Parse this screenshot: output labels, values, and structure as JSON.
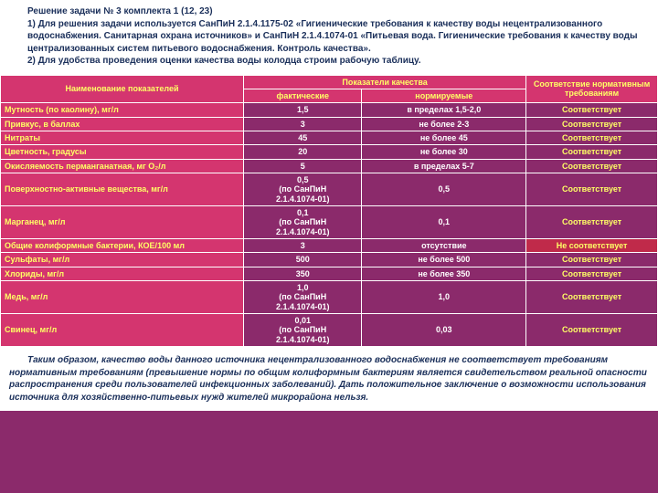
{
  "header": {
    "title": "Решение задачи № 3 комплекта 1 (12, 23)",
    "p1_prefix": "1) ",
    "p1": "Для решения задачи используется СанПиН 2.1.4.1175-02 «Гигиенические требования к качеству воды нецентрализованного водоснабжения. Санитарная охрана источников» и СанПиН 2.1.4.1074-01 «Питьевая вода. Гигиенические требования к качеству воды централизованных систем питьевого водоснабжения. Контроль качества».",
    "p2_prefix": "2) ",
    "p2": "Для удобства проведения оценки качества воды колодца строим рабочую таблицу."
  },
  "table": {
    "col_name": "Наименование показателей",
    "col_quality": "Показатели качества",
    "col_actual": "фактические",
    "col_norm": "нормируемые",
    "col_compliance": "Соответствие нормативным требованиям",
    "rows": [
      {
        "name": "Мутность (по каолину), мг/л",
        "actual": "1,5",
        "norm": "в пределах 1,5-2,0",
        "comp": "Соответствует",
        "ok": true
      },
      {
        "name": "Привкус, в баллах",
        "actual": "3",
        "norm": "не более 2-3",
        "comp": "Соответствует",
        "ok": true
      },
      {
        "name": "Нитраты",
        "actual": "45",
        "norm": "не более 45",
        "comp": "Соответствует",
        "ok": true
      },
      {
        "name": "Цветность, градусы",
        "actual": "20",
        "norm": "не более 30",
        "comp": "Соответствует",
        "ok": true
      },
      {
        "name": "Окисляемость перманганатная, мг О₂/л",
        "actual": "5",
        "norm": "в пределах 5-7",
        "comp": "Соответствует",
        "ok": true
      },
      {
        "name": "Поверхностно-активные вещества, мг/л",
        "actual": "0,5\n(по СанПиН\n2.1.4.1074-01)",
        "norm": "0,5",
        "comp": "Соответствует",
        "ok": true
      },
      {
        "name": "Марганец, мг/л",
        "actual": "0,1\n(по СанПиН\n2.1.4.1074-01)",
        "norm": "0,1",
        "comp": "Соответствует",
        "ok": true
      },
      {
        "name": "Общие колиформные бактерии, КОЕ/100 мл",
        "actual": "3",
        "norm": "отсутствие",
        "comp": "Не соответствует",
        "ok": false
      },
      {
        "name": "Сульфаты, мг/л",
        "actual": "500",
        "norm": "не более 500",
        "comp": "Соответствует",
        "ok": true
      },
      {
        "name": "Хлориды, мг/л",
        "actual": "350",
        "norm": "не более 350",
        "comp": "Соответствует",
        "ok": true
      },
      {
        "name": "Медь, мг/л",
        "actual": "1,0\n(по СанПиН\n2.1.4.1074-01)",
        "norm": "1,0",
        "comp": "Соответствует",
        "ok": true
      },
      {
        "name": "Свинец, мг/л",
        "actual": "0,01\n(по СанПиН\n2.1.4.1074-01)",
        "norm": "0,03",
        "comp": "Соответствует",
        "ok": true
      }
    ]
  },
  "footer": {
    "text": "Таким образом, качество воды данного источника нецентрализованного водоснабжения не соответствует требованиям нормативным требованиям (превышение нормы по общим колиформным бактериям является свидетельством реальной опасности распространения среди пользователей инфекционных заболеваний). Дать положительное заключение о возможности использования источника для хозяйственно-питьевых нужд жителей микрорайона нельзя."
  },
  "colors": {
    "bg": "#8b2a6b",
    "header_row": "#d4356f",
    "header_text": "#ffff66",
    "fail_row": "#c02a4a",
    "page_bg": "#ffffff"
  }
}
